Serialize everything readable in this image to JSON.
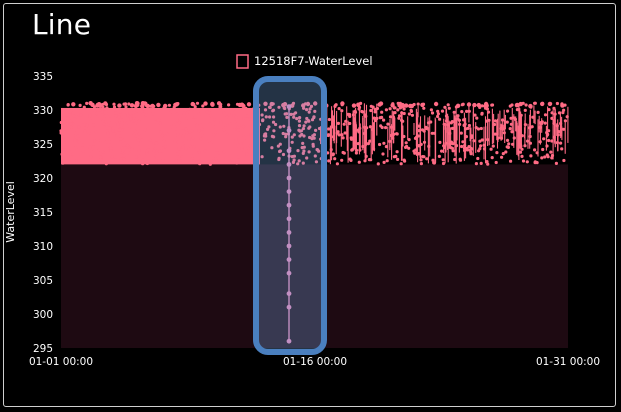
{
  "title": "Line",
  "chart_data": {
    "type": "line",
    "title": "Line",
    "xlabel": "",
    "ylabel": "WaterLevel",
    "ylim": [
      295,
      335
    ],
    "y_ticks": [
      295,
      300,
      305,
      310,
      315,
      320,
      325,
      330,
      335
    ],
    "x_ticks": [
      "01-01 00:00",
      "01-16 00:00",
      "01-31 00:00"
    ],
    "legend_position": "top-center",
    "grid": false,
    "series": [
      {
        "name": "12518F7-WaterLevel",
        "color": "#ff6b85",
        "band_low": 322,
        "band_high": 331,
        "dip_values": [
          330.5,
          327,
          324,
          322,
          320,
          318,
          316,
          314,
          312,
          310,
          308,
          306,
          303,
          301,
          296
        ]
      }
    ],
    "highlight": {
      "color": "#4a7fbf"
    }
  }
}
